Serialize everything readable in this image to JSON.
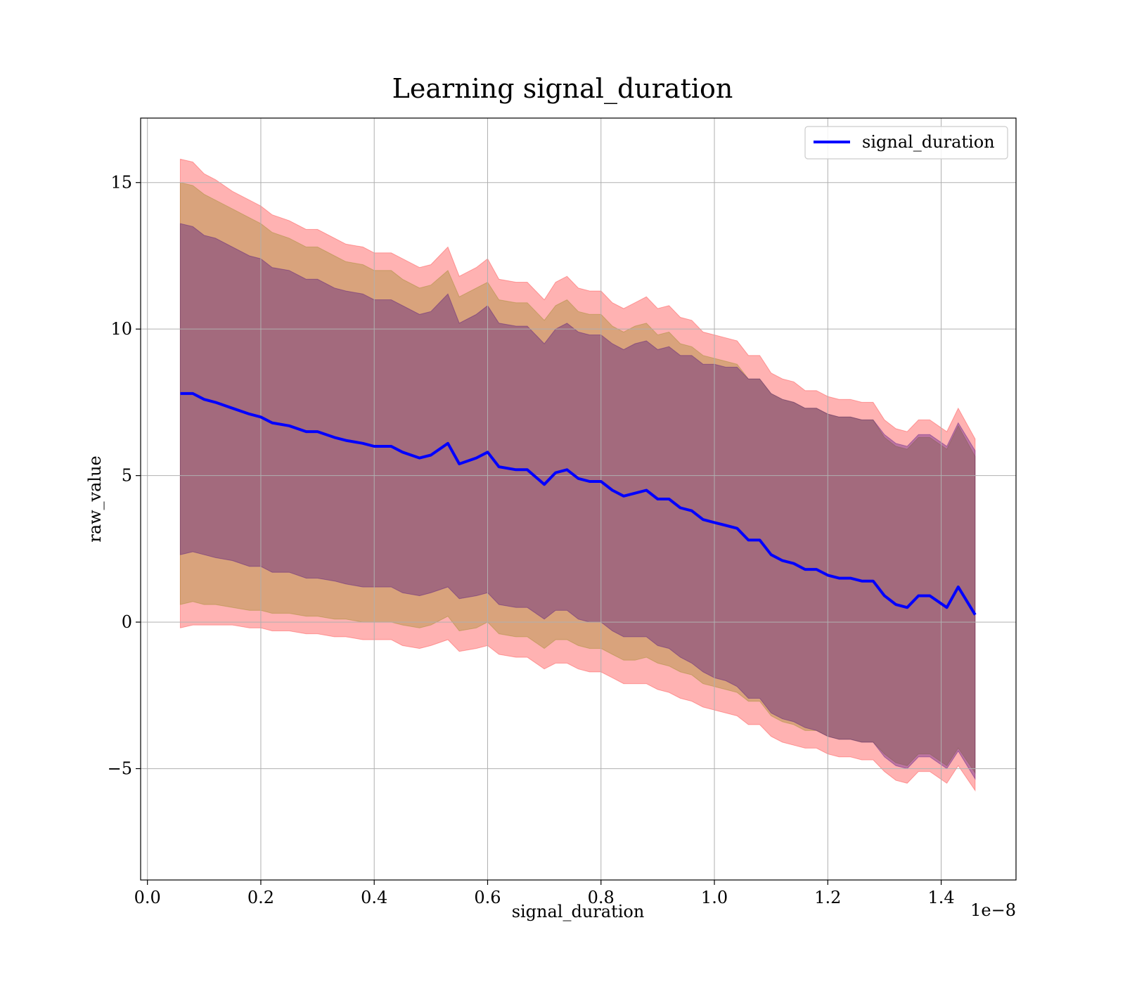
{
  "chart_data": {
    "type": "line",
    "title": "Learning signal_duration",
    "xlabel": "signal_duration",
    "ylabel": "raw_value",
    "x_offset_label": "1e−8",
    "xlim": [
      -0.012,
      1.532
    ],
    "ylim": [
      -8.8,
      17.2
    ],
    "x_ticks": [
      0.0,
      0.2,
      0.4,
      0.6,
      0.8,
      1.0,
      1.2,
      1.4
    ],
    "x_tick_labels": [
      "0.0",
      "0.2",
      "0.4",
      "0.6",
      "0.8",
      "1.0",
      "1.2",
      "1.4"
    ],
    "y_ticks": [
      -5,
      0,
      5,
      10,
      15
    ],
    "y_tick_labels": [
      "−5",
      "0",
      "5",
      "10",
      "15"
    ],
    "grid": true,
    "legend_position": "top-right",
    "series": [
      {
        "name": "signal_duration",
        "color": "#0000ff",
        "x": [
          0.058,
          0.08,
          0.1,
          0.12,
          0.15,
          0.18,
          0.2,
          0.22,
          0.25,
          0.28,
          0.3,
          0.33,
          0.35,
          0.38,
          0.4,
          0.43,
          0.45,
          0.48,
          0.5,
          0.53,
          0.55,
          0.58,
          0.6,
          0.62,
          0.65,
          0.67,
          0.7,
          0.72,
          0.74,
          0.76,
          0.78,
          0.8,
          0.82,
          0.84,
          0.86,
          0.88,
          0.9,
          0.92,
          0.94,
          0.96,
          0.98,
          1.0,
          1.02,
          1.04,
          1.06,
          1.08,
          1.1,
          1.12,
          1.14,
          1.16,
          1.18,
          1.2,
          1.22,
          1.24,
          1.26,
          1.28,
          1.3,
          1.32,
          1.34,
          1.36,
          1.38,
          1.41,
          1.43,
          1.46
        ],
        "values": [
          7.8,
          7.8,
          7.6,
          7.5,
          7.3,
          7.1,
          7.0,
          6.8,
          6.7,
          6.5,
          6.5,
          6.3,
          6.2,
          6.1,
          6.0,
          6.0,
          5.8,
          5.6,
          5.7,
          6.1,
          5.4,
          5.6,
          5.8,
          5.3,
          5.2,
          5.2,
          4.7,
          5.1,
          5.2,
          4.9,
          4.8,
          4.8,
          4.5,
          4.3,
          4.4,
          4.5,
          4.2,
          4.2,
          3.9,
          3.8,
          3.5,
          3.4,
          3.3,
          3.2,
          2.8,
          2.8,
          2.3,
          2.1,
          2.0,
          1.8,
          1.8,
          1.6,
          1.5,
          1.5,
          1.4,
          1.4,
          0.9,
          0.6,
          0.5,
          0.9,
          0.9,
          0.5,
          1.2,
          0.25
        ]
      }
    ],
    "bands": [
      {
        "color": "#ff0000",
        "opacity": 0.3,
        "upper_offset": [
          8.0,
          7.9,
          7.7,
          7.6,
          7.4,
          7.3,
          7.2,
          7.1,
          7.0,
          6.9,
          6.9,
          6.8,
          6.7,
          6.7,
          6.6,
          6.6,
          6.6,
          6.5,
          6.5,
          6.7,
          6.4,
          6.5,
          6.6,
          6.4,
          6.4,
          6.4,
          6.3,
          6.5,
          6.6,
          6.5,
          6.5,
          6.5,
          6.4,
          6.4,
          6.5,
          6.6,
          6.5,
          6.6,
          6.5,
          6.5,
          6.4,
          6.4,
          6.4,
          6.4,
          6.3,
          6.3,
          6.2,
          6.2,
          6.2,
          6.1,
          6.1,
          6.1,
          6.1,
          6.1,
          6.1,
          6.1,
          6.0,
          6.0,
          6.0,
          6.0,
          6.0,
          6.0,
          6.1,
          6.0
        ],
        "lower_offset": [
          8.0,
          7.9,
          7.7,
          7.6,
          7.4,
          7.3,
          7.2,
          7.1,
          7.0,
          6.9,
          6.9,
          6.8,
          6.7,
          6.7,
          6.6,
          6.6,
          6.6,
          6.5,
          6.5,
          6.7,
          6.4,
          6.5,
          6.6,
          6.4,
          6.4,
          6.4,
          6.3,
          6.5,
          6.6,
          6.5,
          6.5,
          6.5,
          6.4,
          6.4,
          6.5,
          6.6,
          6.5,
          6.6,
          6.5,
          6.5,
          6.4,
          6.4,
          6.4,
          6.4,
          6.3,
          6.3,
          6.2,
          6.2,
          6.2,
          6.1,
          6.1,
          6.1,
          6.1,
          6.1,
          6.1,
          6.1,
          6.0,
          6.0,
          6.0,
          6.0,
          6.0,
          6.0,
          6.1,
          6.0
        ]
      },
      {
        "color": "#808000",
        "opacity": 0.3,
        "upper_offset": [
          7.2,
          7.1,
          7.0,
          6.9,
          6.8,
          6.7,
          6.6,
          6.5,
          6.4,
          6.3,
          6.3,
          6.2,
          6.1,
          6.1,
          6.0,
          6.0,
          5.9,
          5.8,
          5.8,
          5.9,
          5.7,
          5.8,
          5.8,
          5.7,
          5.7,
          5.7,
          5.6,
          5.7,
          5.8,
          5.7,
          5.7,
          5.7,
          5.6,
          5.6,
          5.7,
          5.7,
          5.6,
          5.7,
          5.6,
          5.6,
          5.6,
          5.6,
          5.6,
          5.6,
          5.5,
          5.5,
          5.5,
          5.5,
          5.5,
          5.5,
          5.5,
          5.5,
          5.5,
          5.5,
          5.5,
          5.5,
          5.4,
          5.4,
          5.4,
          5.4,
          5.4,
          5.4,
          5.5,
          5.4
        ],
        "lower_offset": [
          7.2,
          7.1,
          7.0,
          6.9,
          6.8,
          6.7,
          6.6,
          6.5,
          6.4,
          6.3,
          6.3,
          6.2,
          6.1,
          6.1,
          6.0,
          6.0,
          5.9,
          5.8,
          5.8,
          5.9,
          5.7,
          5.8,
          5.8,
          5.7,
          5.7,
          5.7,
          5.6,
          5.7,
          5.8,
          5.7,
          5.7,
          5.7,
          5.6,
          5.6,
          5.7,
          5.7,
          5.6,
          5.7,
          5.6,
          5.6,
          5.6,
          5.6,
          5.6,
          5.6,
          5.5,
          5.5,
          5.5,
          5.5,
          5.5,
          5.5,
          5.5,
          5.5,
          5.5,
          5.5,
          5.5,
          5.5,
          5.4,
          5.4,
          5.4,
          5.4,
          5.4,
          5.4,
          5.5,
          5.4
        ]
      },
      {
        "color": "#400080",
        "opacity": 0.35,
        "upper_offset": [
          5.8,
          5.7,
          5.6,
          5.6,
          5.5,
          5.4,
          5.4,
          5.3,
          5.3,
          5.2,
          5.2,
          5.1,
          5.1,
          5.1,
          5.0,
          5.0,
          5.0,
          4.9,
          4.9,
          5.1,
          4.8,
          4.9,
          5.0,
          4.9,
          4.9,
          4.9,
          4.8,
          4.9,
          5.0,
          5.0,
          5.0,
          5.0,
          5.0,
          5.0,
          5.1,
          5.1,
          5.1,
          5.2,
          5.2,
          5.3,
          5.3,
          5.4,
          5.4,
          5.5,
          5.5,
          5.5,
          5.5,
          5.5,
          5.5,
          5.5,
          5.5,
          5.5,
          5.5,
          5.5,
          5.5,
          5.5,
          5.5,
          5.5,
          5.5,
          5.5,
          5.5,
          5.5,
          5.6,
          5.6
        ],
        "lower_offset": [
          5.5,
          5.4,
          5.3,
          5.3,
          5.2,
          5.2,
          5.1,
          5.1,
          5.0,
          5.0,
          5.0,
          4.9,
          4.9,
          4.9,
          4.8,
          4.8,
          4.8,
          4.7,
          4.7,
          4.9,
          4.6,
          4.7,
          4.8,
          4.7,
          4.7,
          4.7,
          4.6,
          4.7,
          4.8,
          4.8,
          4.8,
          4.8,
          4.8,
          4.8,
          4.9,
          5.0,
          5.0,
          5.1,
          5.1,
          5.2,
          5.2,
          5.3,
          5.3,
          5.4,
          5.4,
          5.4,
          5.4,
          5.4,
          5.4,
          5.4,
          5.5,
          5.5,
          5.5,
          5.5,
          5.5,
          5.5,
          5.5,
          5.5,
          5.5,
          5.5,
          5.5,
          5.5,
          5.6,
          5.6
        ]
      }
    ]
  }
}
